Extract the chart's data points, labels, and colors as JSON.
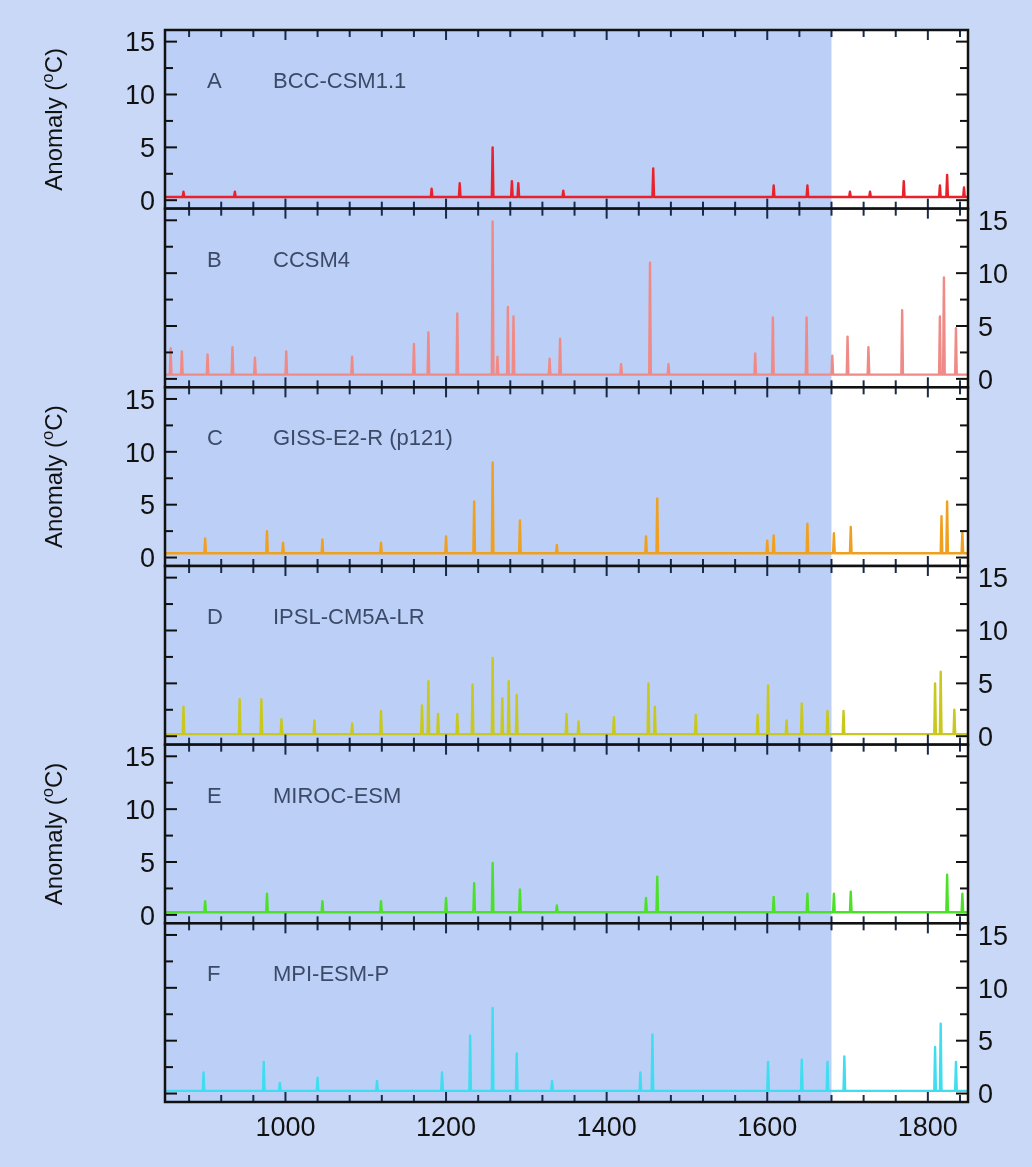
{
  "chart_data": [
    {
      "type": "line",
      "title": "A",
      "subtitle": "BCC-CSM1.1",
      "ylabel": "Anomaly ($^{o}$C)",
      "tick_labels": "y",
      "xlim": [
        850,
        1850
      ],
      "xticks": [
        {
          "value": 880,
          "label": null
        },
        {
          "value": 920,
          "label": null
        },
        {
          "value": 960,
          "label": null
        },
        1000,
        {
          "value": 1040,
          "label": null
        },
        {
          "value": 1080,
          "label": null
        },
        {
          "value": 1120,
          "label": null
        },
        {
          "value": 1160,
          "label": null
        },
        1200,
        {
          "value": 1240,
          "label": null
        },
        {
          "value": 1280,
          "label": null
        },
        {
          "value": 1320,
          "label": null
        },
        {
          "value": 1360,
          "label": null
        },
        1400,
        {
          "value": 1440,
          "label": null
        },
        {
          "value": 1480,
          "label": null
        },
        {
          "value": 1520,
          "label": null
        },
        {
          "value": 1560,
          "label": null
        },
        1600,
        {
          "value": 1640,
          "label": null
        },
        {
          "value": 1680,
          "label": null
        },
        {
          "value": 1720,
          "label": null
        },
        {
          "value": 1760,
          "label": null
        },
        1800,
        {
          "value": 1840,
          "label": null
        }
      ],
      "ylim": [
        -0.8,
        16.1
      ],
      "yticks": [
        0,
        {
          "value": 2.5,
          "label": null
        },
        5,
        {
          "value": 7.5,
          "label": null
        },
        10,
        {
          "value": 12.5,
          "label": null
        },
        15
      ],
      "bands": [
        {
          "axis": "x",
          "from": 850,
          "to": 1680,
          "color": "#bcd0f7"
        }
      ],
      "series": [
        {
          "color": "#e8222a",
          "x": [
            850,
            872,
            873,
            874,
            936,
            937,
            938,
            1181,
            1182,
            1183,
            1216,
            1217,
            1218,
            1257,
            1258,
            1259,
            1281,
            1282,
            1283,
            1289,
            1290,
            1291,
            1345,
            1346,
            1347,
            1457,
            1458,
            1459,
            1607,
            1608,
            1609,
            1649,
            1650,
            1651,
            1702,
            1703,
            1704,
            1727,
            1728,
            1729,
            1769,
            1770,
            1771,
            1814,
            1815,
            1816,
            1823,
            1824,
            1825,
            1844,
            1845,
            1846,
            1850
          ],
          "values": [
            0.3,
            0.3,
            0.8,
            0.3,
            0.3,
            0.8,
            0.3,
            0.3,
            1.1,
            0.3,
            0.3,
            1.6,
            0.3,
            0.3,
            5,
            0.3,
            0.3,
            1.8,
            0.3,
            0.3,
            1.6,
            0.3,
            0.3,
            0.9,
            0.3,
            0.3,
            3,
            0.3,
            0.3,
            1.4,
            0.3,
            0.3,
            1.4,
            0.3,
            0.3,
            0.8,
            0.3,
            0.3,
            0.8,
            0.3,
            0.3,
            1.8,
            0.3,
            0.3,
            1.4,
            0.3,
            0.3,
            2.4,
            0.3,
            0.3,
            1.2,
            0.3,
            0.3
          ]
        }
      ]
    },
    {
      "type": "line",
      "title": "B",
      "subtitle": "CCSM4",
      "tick_labels": "y",
      "xlim": [
        850,
        1850
      ],
      "xticks": [
        {
          "value": 880,
          "label": null
        },
        {
          "value": 920,
          "label": null
        },
        {
          "value": 960,
          "label": null
        },
        1000,
        {
          "value": 1040,
          "label": null
        },
        {
          "value": 1080,
          "label": null
        },
        {
          "value": 1120,
          "label": null
        },
        {
          "value": 1160,
          "label": null
        },
        1200,
        {
          "value": 1240,
          "label": null
        },
        {
          "value": 1280,
          "label": null
        },
        {
          "value": 1320,
          "label": null
        },
        {
          "value": 1360,
          "label": null
        },
        1400,
        {
          "value": 1440,
          "label": null
        },
        {
          "value": 1480,
          "label": null
        },
        {
          "value": 1520,
          "label": null
        },
        {
          "value": 1560,
          "label": null
        },
        1600,
        {
          "value": 1640,
          "label": null
        },
        {
          "value": 1680,
          "label": null
        },
        {
          "value": 1720,
          "label": null
        },
        {
          "value": 1760,
          "label": null
        },
        1800,
        {
          "value": 1840,
          "label": null
        }
      ],
      "y2lim": [
        -0.8,
        16.1
      ],
      "y2ticks": [
        0,
        {
          "value": 2.5,
          "label": null
        },
        5,
        {
          "value": 7.5,
          "label": null
        },
        10,
        {
          "value": 12.5,
          "label": null
        },
        15
      ],
      "bands": [
        {
          "axis": "x",
          "from": 850,
          "to": 1680,
          "color": "#bcd0f7"
        }
      ],
      "series": [
        {
          "color": "#f08a86",
          "axis": "y2",
          "x": [
            850,
            856,
            857,
            858,
            870,
            871,
            872,
            902,
            903,
            904,
            933,
            934,
            935,
            961,
            962,
            963,
            1000,
            1001,
            1002,
            1082,
            1083,
            1084,
            1159,
            1160,
            1161,
            1177,
            1178,
            1179,
            1213,
            1214,
            1215,
            1257,
            1258,
            1259,
            1263,
            1264,
            1265,
            1276,
            1277,
            1278,
            1283,
            1284,
            1285,
            1328,
            1329,
            1330,
            1341,
            1342,
            1343,
            1417,
            1418,
            1419,
            1453,
            1454,
            1455,
            1476,
            1477,
            1478,
            1584,
            1585,
            1586,
            1606,
            1607,
            1608,
            1648,
            1649,
            1650,
            1680,
            1681,
            1682,
            1699,
            1700,
            1701,
            1725,
            1726,
            1727,
            1767,
            1768,
            1769,
            1814,
            1815,
            1816,
            1819,
            1820,
            1821,
            1834,
            1835,
            1836,
            1850
          ],
          "values": [
            0.4,
            0.4,
            2.9,
            0.4,
            0.4,
            2.6,
            0.4,
            0.4,
            2.3,
            0.4,
            0.4,
            3,
            0.4,
            0.4,
            2,
            0.4,
            0.4,
            2.6,
            0.4,
            0.4,
            2.1,
            0.4,
            0.4,
            3.3,
            0.4,
            0.4,
            4.4,
            0.4,
            0.4,
            6.2,
            0.4,
            0.4,
            14.9,
            0.4,
            0.4,
            2.1,
            0.4,
            0.4,
            6.8,
            0.4,
            0.4,
            5.9,
            0.4,
            0.4,
            1.9,
            0.4,
            0.4,
            3.8,
            0.4,
            0.4,
            1.4,
            0.4,
            0.4,
            11,
            0.4,
            0.4,
            1.4,
            0.4,
            0.4,
            2.4,
            0.4,
            0.4,
            5.8,
            0.4,
            0.4,
            5.8,
            0.4,
            0.4,
            2.2,
            0.4,
            0.4,
            4,
            0.4,
            0.4,
            3,
            0.4,
            0.4,
            6.5,
            0.4,
            0.4,
            5.9,
            0.4,
            0.4,
            9.6,
            0.4,
            0.4,
            4.8,
            0.4,
            0.4
          ]
        }
      ]
    },
    {
      "type": "line",
      "title": "C",
      "subtitle": "GISS-E2-R (p121)",
      "ylabel": "Anomaly ($^{o}$C)",
      "tick_labels": "y",
      "xlim": [
        850,
        1850
      ],
      "xticks": [
        {
          "value": 880,
          "label": null
        },
        {
          "value": 920,
          "label": null
        },
        {
          "value": 960,
          "label": null
        },
        1000,
        {
          "value": 1040,
          "label": null
        },
        {
          "value": 1080,
          "label": null
        },
        {
          "value": 1120,
          "label": null
        },
        {
          "value": 1160,
          "label": null
        },
        1200,
        {
          "value": 1240,
          "label": null
        },
        {
          "value": 1280,
          "label": null
        },
        {
          "value": 1320,
          "label": null
        },
        {
          "value": 1360,
          "label": null
        },
        1400,
        {
          "value": 1440,
          "label": null
        },
        {
          "value": 1480,
          "label": null
        },
        {
          "value": 1520,
          "label": null
        },
        {
          "value": 1560,
          "label": null
        },
        1600,
        {
          "value": 1640,
          "label": null
        },
        {
          "value": 1680,
          "label": null
        },
        {
          "value": 1720,
          "label": null
        },
        {
          "value": 1760,
          "label": null
        },
        1800,
        {
          "value": 1840,
          "label": null
        }
      ],
      "ylim": [
        -0.8,
        16.1
      ],
      "yticks": [
        0,
        {
          "value": 2.5,
          "label": null
        },
        5,
        {
          "value": 7.5,
          "label": null
        },
        10,
        {
          "value": 12.5,
          "label": null
        },
        15
      ],
      "bands": [
        {
          "axis": "x",
          "from": 850,
          "to": 1680,
          "color": "#bcd0f7"
        }
      ],
      "series": [
        {
          "color": "#f0a020",
          "x": [
            850,
            899,
            900,
            901,
            976,
            977,
            978,
            996,
            997,
            998,
            1045,
            1046,
            1047,
            1118,
            1119,
            1120,
            1199,
            1200,
            1201,
            1234,
            1235,
            1236,
            1257,
            1258,
            1259,
            1291,
            1292,
            1293,
            1337,
            1338,
            1339,
            1448,
            1449,
            1450,
            1462,
            1463,
            1464,
            1599,
            1600,
            1601,
            1607,
            1608,
            1609,
            1649,
            1650,
            1651,
            1682,
            1683,
            1684,
            1703,
            1704,
            1705,
            1816,
            1817,
            1818,
            1823,
            1824,
            1825,
            1842,
            1843,
            1844,
            1850
          ],
          "values": [
            0.4,
            0.4,
            1.8,
            0.4,
            0.4,
            2.5,
            0.4,
            0.4,
            1.4,
            0.4,
            0.4,
            1.7,
            0.4,
            0.4,
            1.4,
            0.4,
            0.4,
            2,
            0.4,
            0.4,
            5.3,
            0.4,
            0.4,
            9,
            0.4,
            0.4,
            3.5,
            0.4,
            0.4,
            1.2,
            0.4,
            0.4,
            2,
            0.4,
            0.4,
            5.6,
            0.4,
            0.4,
            1.6,
            0.4,
            0.4,
            2.1,
            0.4,
            0.4,
            3.2,
            0.4,
            0.4,
            2.3,
            0.4,
            0.4,
            2.9,
            0.4,
            0.4,
            3.9,
            0.4,
            0.4,
            5.3,
            0.4,
            0.4,
            2.4,
            0.4,
            0.4
          ]
        }
      ]
    },
    {
      "type": "line",
      "title": "D",
      "subtitle": "IPSL-CM5A-LR",
      "tick_labels": "y",
      "xlim": [
        850,
        1850
      ],
      "xticks": [
        {
          "value": 880,
          "label": null
        },
        {
          "value": 920,
          "label": null
        },
        {
          "value": 960,
          "label": null
        },
        1000,
        {
          "value": 1040,
          "label": null
        },
        {
          "value": 1080,
          "label": null
        },
        {
          "value": 1120,
          "label": null
        },
        {
          "value": 1160,
          "label": null
        },
        1200,
        {
          "value": 1240,
          "label": null
        },
        {
          "value": 1280,
          "label": null
        },
        {
          "value": 1320,
          "label": null
        },
        {
          "value": 1360,
          "label": null
        },
        1400,
        {
          "value": 1440,
          "label": null
        },
        {
          "value": 1480,
          "label": null
        },
        {
          "value": 1520,
          "label": null
        },
        {
          "value": 1560,
          "label": null
        },
        1600,
        {
          "value": 1640,
          "label": null
        },
        {
          "value": 1680,
          "label": null
        },
        {
          "value": 1720,
          "label": null
        },
        {
          "value": 1760,
          "label": null
        },
        1800,
        {
          "value": 1840,
          "label": null
        }
      ],
      "y2lim": [
        -0.8,
        16.1
      ],
      "y2ticks": [
        0,
        {
          "value": 2.5,
          "label": null
        },
        5,
        {
          "value": 7.5,
          "label": null
        },
        10,
        {
          "value": 12.5,
          "label": null
        },
        15
      ],
      "bands": [
        {
          "axis": "x",
          "from": 850,
          "to": 1680,
          "color": "#bcd0f7"
        }
      ],
      "series": [
        {
          "color": "#c8c81e",
          "axis": "y2",
          "x": [
            850,
            872,
            873,
            874,
            942,
            943,
            944,
            969,
            970,
            971,
            994,
            995,
            996,
            1035,
            1036,
            1037,
            1082,
            1083,
            1084,
            1118,
            1119,
            1120,
            1169,
            1170,
            1171,
            1177,
            1178,
            1179,
            1189,
            1190,
            1191,
            1213,
            1214,
            1215,
            1232,
            1233,
            1234,
            1257,
            1258,
            1259,
            1269,
            1270,
            1271,
            1277,
            1278,
            1279,
            1287,
            1288,
            1289,
            1349,
            1350,
            1351,
            1364,
            1365,
            1366,
            1408,
            1409,
            1410,
            1451,
            1452,
            1453,
            1459,
            1460,
            1461,
            1510,
            1511,
            1512,
            1587,
            1588,
            1589,
            1600,
            1601,
            1602,
            1623,
            1624,
            1625,
            1642,
            1643,
            1644,
            1674,
            1675,
            1676,
            1694,
            1695,
            1696,
            1808,
            1809,
            1810,
            1815,
            1816,
            1817,
            1832,
            1833,
            1834,
            1850
          ],
          "values": [
            0.2,
            0.2,
            2.8,
            0.2,
            0.2,
            3.5,
            0.2,
            0.2,
            3.5,
            0.2,
            0.2,
            1.6,
            0.2,
            0.2,
            1.5,
            0.2,
            0.2,
            1.2,
            0.2,
            0.2,
            2.4,
            0.2,
            0.2,
            2.9,
            0.2,
            0.2,
            5.2,
            0.2,
            0.2,
            2.1,
            0.2,
            0.2,
            2.1,
            0.2,
            0.2,
            4.9,
            0.2,
            0.2,
            7.4,
            0.2,
            0.2,
            3.6,
            0.2,
            0.2,
            5.2,
            0.2,
            0.2,
            3.9,
            0.2,
            0.2,
            2.1,
            0.2,
            0.2,
            1.4,
            0.2,
            0.2,
            1.8,
            0.2,
            0.2,
            5,
            0.2,
            0.2,
            2.8,
            0.2,
            0.2,
            2,
            0.2,
            0.2,
            2,
            0.2,
            0.2,
            4.8,
            0.2,
            0.2,
            1.5,
            0.2,
            0.2,
            3.1,
            0.2,
            0.2,
            2.4,
            0.2,
            0.2,
            2.4,
            0.2,
            0.2,
            5,
            0.2,
            0.2,
            6.1,
            0.2,
            0.2,
            2.5,
            0.2,
            0.2
          ]
        }
      ]
    },
    {
      "type": "line",
      "title": "E",
      "subtitle": "MIROC-ESM",
      "ylabel": "Anomaly ($^{o}$C)",
      "tick_labels": "y",
      "xlim": [
        850,
        1850
      ],
      "xticks": [
        {
          "value": 880,
          "label": null
        },
        {
          "value": 920,
          "label": null
        },
        {
          "value": 960,
          "label": null
        },
        1000,
        {
          "value": 1040,
          "label": null
        },
        {
          "value": 1080,
          "label": null
        },
        {
          "value": 1120,
          "label": null
        },
        {
          "value": 1160,
          "label": null
        },
        1200,
        {
          "value": 1240,
          "label": null
        },
        {
          "value": 1280,
          "label": null
        },
        {
          "value": 1320,
          "label": null
        },
        {
          "value": 1360,
          "label": null
        },
        1400,
        {
          "value": 1440,
          "label": null
        },
        {
          "value": 1480,
          "label": null
        },
        {
          "value": 1520,
          "label": null
        },
        {
          "value": 1560,
          "label": null
        },
        1600,
        {
          "value": 1640,
          "label": null
        },
        {
          "value": 1680,
          "label": null
        },
        {
          "value": 1720,
          "label": null
        },
        {
          "value": 1760,
          "label": null
        },
        1800,
        {
          "value": 1840,
          "label": null
        }
      ],
      "ylim": [
        -0.8,
        16.1
      ],
      "yticks": [
        0,
        {
          "value": 2.5,
          "label": null
        },
        5,
        {
          "value": 7.5,
          "label": null
        },
        10,
        {
          "value": 12.5,
          "label": null
        },
        15
      ],
      "bands": [
        {
          "axis": "x",
          "from": 850,
          "to": 1680,
          "color": "#bcd0f7"
        }
      ],
      "series": [
        {
          "color": "#4ce02a",
          "x": [
            850,
            899,
            900,
            901,
            976,
            977,
            978,
            1045,
            1046,
            1047,
            1118,
            1119,
            1120,
            1199,
            1200,
            1201,
            1234,
            1235,
            1236,
            1257,
            1258,
            1259,
            1291,
            1292,
            1293,
            1337,
            1338,
            1339,
            1448,
            1449,
            1450,
            1462,
            1463,
            1464,
            1607,
            1608,
            1609,
            1649,
            1650,
            1651,
            1682,
            1683,
            1684,
            1703,
            1704,
            1705,
            1823,
            1824,
            1825,
            1842,
            1843,
            1844,
            1850
          ],
          "values": [
            0.25,
            0.25,
            1.3,
            0.25,
            0.25,
            2,
            0.25,
            0.25,
            1.3,
            0.25,
            0.25,
            1.3,
            0.25,
            0.25,
            1.6,
            0.25,
            0.25,
            3,
            0.25,
            0.25,
            4.9,
            0.25,
            0.25,
            2.4,
            0.25,
            0.25,
            0.9,
            0.25,
            0.25,
            1.6,
            0.25,
            0.25,
            3.6,
            0.25,
            0.25,
            1.7,
            0.25,
            0.25,
            2,
            0.25,
            0.25,
            2,
            0.25,
            0.25,
            2.2,
            0.25,
            0.25,
            3.8,
            0.25,
            0.25,
            2,
            0.25,
            0.25
          ]
        }
      ]
    },
    {
      "type": "line",
      "title": "F",
      "subtitle": "MPI-ESM-P",
      "xlim": [
        850,
        1850
      ],
      "xticks": [
        {
          "value": 880,
          "label": null
        },
        {
          "value": 920,
          "label": null
        },
        {
          "value": 960,
          "label": null
        },
        1000,
        {
          "value": 1040,
          "label": null
        },
        {
          "value": 1080,
          "label": null
        },
        {
          "value": 1120,
          "label": null
        },
        {
          "value": 1160,
          "label": null
        },
        1200,
        {
          "value": 1240,
          "label": null
        },
        {
          "value": 1280,
          "label": null
        },
        {
          "value": 1320,
          "label": null
        },
        {
          "value": 1360,
          "label": null
        },
        1400,
        {
          "value": 1440,
          "label": null
        },
        {
          "value": 1480,
          "label": null
        },
        {
          "value": 1520,
          "label": null
        },
        {
          "value": 1560,
          "label": null
        },
        1600,
        {
          "value": 1640,
          "label": null
        },
        {
          "value": 1680,
          "label": null
        },
        {
          "value": 1720,
          "label": null
        },
        {
          "value": 1760,
          "label": null
        },
        1800,
        {
          "value": 1840,
          "label": null
        }
      ],
      "y2lim": [
        -0.8,
        16.1
      ],
      "y2ticks": [
        0,
        {
          "value": 2.5,
          "label": null
        },
        5,
        {
          "value": 7.5,
          "label": null
        },
        10,
        {
          "value": 12.5,
          "label": null
        },
        15
      ],
      "bands": [
        {
          "axis": "x",
          "from": 850,
          "to": 1680,
          "color": "#bcd0f7"
        }
      ],
      "series": [
        {
          "color": "#40dcf0",
          "axis": "y2",
          "x": [
            850,
            897,
            898,
            899,
            972,
            973,
            974,
            992,
            993,
            994,
            1039,
            1040,
            1041,
            1113,
            1114,
            1115,
            1194,
            1195,
            1196,
            1229,
            1230,
            1231,
            1257,
            1258,
            1259,
            1287,
            1288,
            1289,
            1331,
            1332,
            1333,
            1441,
            1442,
            1443,
            1456,
            1457,
            1458,
            1600,
            1601,
            1602,
            1642,
            1643,
            1644,
            1674,
            1675,
            1676,
            1695,
            1696,
            1697,
            1808,
            1809,
            1810,
            1815,
            1816,
            1817,
            1834,
            1835,
            1836,
            1850
          ],
          "values": [
            0.25,
            0.25,
            2,
            0.25,
            0.25,
            3,
            0.25,
            0.25,
            1,
            0.25,
            0.25,
            1.5,
            0.25,
            0.25,
            1.2,
            0.25,
            0.25,
            2,
            0.25,
            0.25,
            5.5,
            0.25,
            0.25,
            8.1,
            0.25,
            0.25,
            3.8,
            0.25,
            0.25,
            1.2,
            0.25,
            0.25,
            2,
            0.25,
            0.25,
            5.6,
            0.25,
            0.25,
            3,
            0.25,
            0.25,
            3.2,
            0.25,
            0.25,
            3,
            0.25,
            0.25,
            3.5,
            0.25,
            0.25,
            4.4,
            0.25,
            0.25,
            6.6,
            0.25,
            0.25,
            3,
            0.25,
            0.25
          ]
        }
      ]
    }
  ]
}
